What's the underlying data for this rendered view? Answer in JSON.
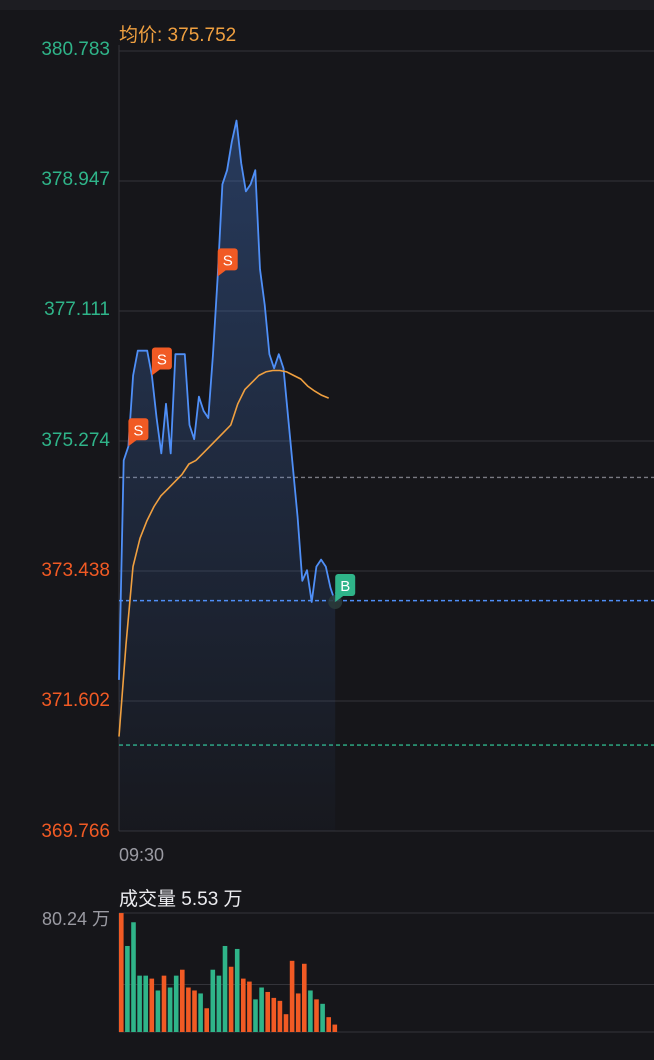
{
  "header": {
    "avg_label": "均价: 375.752"
  },
  "colors": {
    "up": "#2fb489",
    "down": "#f15a24",
    "price_line": "#4f8ff7",
    "avg_line": "#f0a040",
    "grid": "#34343a",
    "axis_text": "#9a9aa2",
    "bg": "#16161a"
  },
  "chart_data": [
    {
      "type": "line",
      "y_axis_labels": [
        "380.783",
        "378.947",
        "377.111",
        "375.274",
        "373.438",
        "371.602",
        "369.766"
      ],
      "ylim": [
        369.766,
        380.783
      ],
      "x_tick_labels": [
        "09:30"
      ],
      "reference_lines": [
        374.76,
        373.02,
        370.98
      ],
      "series": [
        {
          "name": "price",
          "values": [
            371.9,
            375.0,
            375.2,
            376.2,
            376.55,
            376.55,
            376.55,
            376.2,
            375.6,
            375.1,
            375.8,
            375.1,
            376.5,
            376.5,
            376.5,
            375.5,
            375.3,
            375.9,
            375.7,
            375.6,
            376.5,
            377.6,
            378.9,
            379.1,
            379.5,
            379.8,
            379.2,
            378.8,
            378.9,
            379.1,
            377.7,
            377.2,
            376.5,
            376.3,
            376.5,
            376.3,
            375.6,
            374.9,
            374.2,
            373.3,
            373.45,
            373.0,
            373.5,
            373.6,
            373.5,
            373.2,
            373.0
          ],
          "markers": [
            {
              "index": 2,
              "label": "S"
            },
            {
              "index": 7,
              "label": "S"
            },
            {
              "index": 21,
              "label": "S"
            },
            {
              "index": 46,
              "label": "B"
            }
          ]
        },
        {
          "name": "avg",
          "values": [
            371.1,
            372.4,
            373.5,
            373.9,
            374.15,
            374.35,
            374.5,
            374.6,
            374.7,
            374.8,
            374.95,
            375.0,
            375.1,
            375.2,
            375.3,
            375.4,
            375.5,
            375.8,
            376.0,
            376.1,
            376.2,
            376.25,
            376.27,
            376.27,
            376.25,
            376.2,
            376.15,
            376.05,
            375.98,
            375.92,
            375.88
          ]
        }
      ]
    },
    {
      "type": "bar",
      "title": "成交量 5.53 万",
      "y_axis_labels": [
        "80.24 万"
      ],
      "ylim": [
        0,
        80.24
      ],
      "values": [
        80.2,
        58,
        74,
        38,
        38,
        36,
        28,
        38,
        30,
        38,
        42,
        30,
        28,
        26,
        16,
        42,
        38,
        58,
        44,
        56,
        36,
        34,
        22,
        30,
        27,
        23,
        21,
        12,
        48,
        26,
        46,
        28,
        22,
        19,
        10,
        5
      ],
      "colors": [
        "down",
        "up",
        "up",
        "up",
        "up",
        "down",
        "up",
        "down",
        "up",
        "up",
        "down",
        "down",
        "down",
        "up",
        "down",
        "up",
        "up",
        "up",
        "down",
        "up",
        "down",
        "down",
        "up",
        "up",
        "down",
        "down",
        "down",
        "down",
        "down",
        "down",
        "down",
        "up",
        "down",
        "up",
        "down",
        "down"
      ]
    }
  ]
}
